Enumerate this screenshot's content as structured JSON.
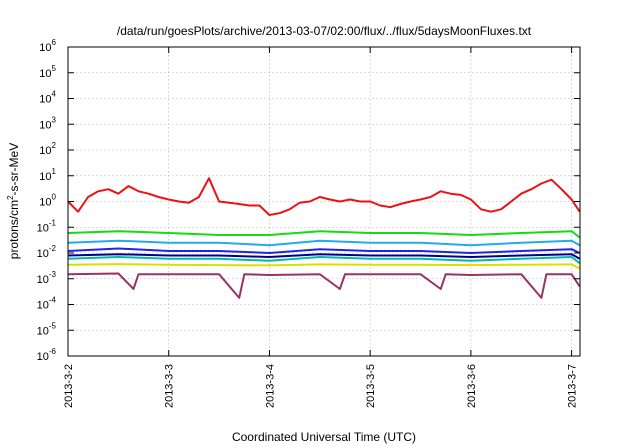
{
  "chart_data": {
    "type": "line",
    "title": "/data/run/goesPlots/archive/2013-03-07/02:00/flux/../flux/5daysMoonFluxes.txt",
    "xlabel": "Coordinated Universal Time (UTC)",
    "ylabel_parts": [
      "protons/cm",
      "2",
      "-s-sr-MeV"
    ],
    "y_scale": "log",
    "ylim": [
      1e-06,
      1000000.0
    ],
    "yticks": [
      {
        "base": "10",
        "exp": "-6"
      },
      {
        "base": "10",
        "exp": "-5"
      },
      {
        "base": "10",
        "exp": "-4"
      },
      {
        "base": "10",
        "exp": "-3"
      },
      {
        "base": "10",
        "exp": "-2"
      },
      {
        "base": "10",
        "exp": "-1"
      },
      {
        "base": "10",
        "exp": "0"
      },
      {
        "base": "10",
        "exp": "1"
      },
      {
        "base": "10",
        "exp": "2"
      },
      {
        "base": "10",
        "exp": "3"
      },
      {
        "base": "10",
        "exp": "4"
      },
      {
        "base": "10",
        "exp": "5"
      },
      {
        "base": "10",
        "exp": "6"
      }
    ],
    "xlim": [
      "2013-03-02 00:00",
      "2013-03-07 02:00"
    ],
    "xticks": [
      "2013-3-2",
      "2013-3-3",
      "2013-3-4",
      "2013-3-5",
      "2013-3-6",
      "2013-3-7"
    ],
    "grid": true,
    "legend": "none",
    "series": [
      {
        "color": "#ee1111",
        "x_days": [
          0,
          0.1,
          0.2,
          0.3,
          0.4,
          0.5,
          0.6,
          0.7,
          0.8,
          0.9,
          1.0,
          1.1,
          1.2,
          1.3,
          1.4,
          1.5,
          1.6,
          1.7,
          1.8,
          1.9,
          2.0,
          2.1,
          2.2,
          2.3,
          2.4,
          2.5,
          2.6,
          2.7,
          2.8,
          2.9,
          3.0,
          3.1,
          3.2,
          3.3,
          3.4,
          3.5,
          3.6,
          3.7,
          3.8,
          3.9,
          4.0,
          4.1,
          4.2,
          4.3,
          4.4,
          4.5,
          4.6,
          4.7,
          4.8,
          4.9,
          5.0,
          5.08
        ],
        "values": [
          1.0,
          0.4,
          1.5,
          2.5,
          3,
          2,
          4,
          2.5,
          2,
          1.5,
          1.2,
          1.0,
          0.9,
          1.5,
          8,
          1.0,
          0.9,
          0.8,
          0.7,
          0.7,
          0.3,
          0.35,
          0.5,
          0.9,
          1.0,
          1.5,
          1.2,
          1.0,
          1.2,
          1.0,
          1.0,
          0.7,
          0.6,
          0.8,
          1.0,
          1.2,
          1.5,
          2.5,
          2,
          1.8,
          1.2,
          0.5,
          0.4,
          0.5,
          1.0,
          2,
          3,
          5,
          7,
          3,
          1.2,
          0.4
        ]
      },
      {
        "color": "#11dd11",
        "x_days": [
          0,
          0.5,
          1.0,
          1.5,
          2.0,
          2.5,
          3.0,
          3.5,
          4.0,
          4.5,
          5.0,
          5.08
        ],
        "values": [
          0.06,
          0.07,
          0.06,
          0.05,
          0.05,
          0.07,
          0.06,
          0.06,
          0.05,
          0.06,
          0.07,
          0.04
        ]
      },
      {
        "color": "#22aaee",
        "x_days": [
          0,
          0.5,
          1.0,
          1.5,
          2.0,
          2.5,
          3.0,
          3.5,
          4.0,
          4.5,
          5.0,
          5.08
        ],
        "values": [
          0.025,
          0.03,
          0.025,
          0.025,
          0.02,
          0.03,
          0.025,
          0.025,
          0.02,
          0.025,
          0.03,
          0.02
        ]
      },
      {
        "color": "#2222ee",
        "x_days": [
          0,
          0.5,
          1.0,
          1.5,
          2.0,
          2.5,
          3.0,
          3.5,
          4.0,
          4.5,
          5.0,
          5.08
        ],
        "values": [
          0.012,
          0.015,
          0.012,
          0.012,
          0.01,
          0.014,
          0.012,
          0.012,
          0.01,
          0.012,
          0.014,
          0.01
        ]
      },
      {
        "color": "#000088",
        "x_days": [
          0,
          0.5,
          1.0,
          1.5,
          2.0,
          2.5,
          3.0,
          3.5,
          4.0,
          4.5,
          5.0,
          5.08
        ],
        "values": [
          0.008,
          0.009,
          0.008,
          0.008,
          0.007,
          0.009,
          0.008,
          0.008,
          0.007,
          0.008,
          0.009,
          0.006
        ]
      },
      {
        "color": "#00bbaa",
        "x_days": [
          0,
          0.5,
          1.0,
          1.5,
          2.0,
          2.5,
          3.0,
          3.5,
          4.0,
          4.5,
          5.0,
          5.08
        ],
        "values": [
          0.006,
          0.007,
          0.006,
          0.006,
          0.005,
          0.007,
          0.006,
          0.006,
          0.005,
          0.006,
          0.007,
          0.004
        ]
      },
      {
        "color": "#dddd00",
        "x_days": [
          0,
          0.5,
          1.0,
          1.5,
          2.0,
          2.5,
          3.0,
          3.5,
          4.0,
          4.5,
          5.0,
          5.08
        ],
        "values": [
          0.0035,
          0.0037,
          0.0035,
          0.0034,
          0.0033,
          0.0036,
          0.0035,
          0.0035,
          0.0034,
          0.0035,
          0.0036,
          0.0025
        ]
      },
      {
        "color": "#993366",
        "x_days": [
          0,
          0.5,
          0.65,
          0.7,
          1.0,
          1.5,
          1.7,
          1.75,
          2.0,
          2.5,
          2.7,
          2.75,
          3.0,
          3.5,
          3.7,
          3.75,
          4.0,
          4.5,
          4.7,
          4.75,
          5.0,
          5.08
        ],
        "values": [
          0.0015,
          0.0016,
          0.0004,
          0.0015,
          0.0015,
          0.0015,
          0.00018,
          0.0015,
          0.0014,
          0.0015,
          0.0004,
          0.0015,
          0.0015,
          0.0015,
          0.0004,
          0.0015,
          0.0014,
          0.0015,
          0.00018,
          0.0015,
          0.0015,
          0.0005
        ]
      }
    ]
  }
}
